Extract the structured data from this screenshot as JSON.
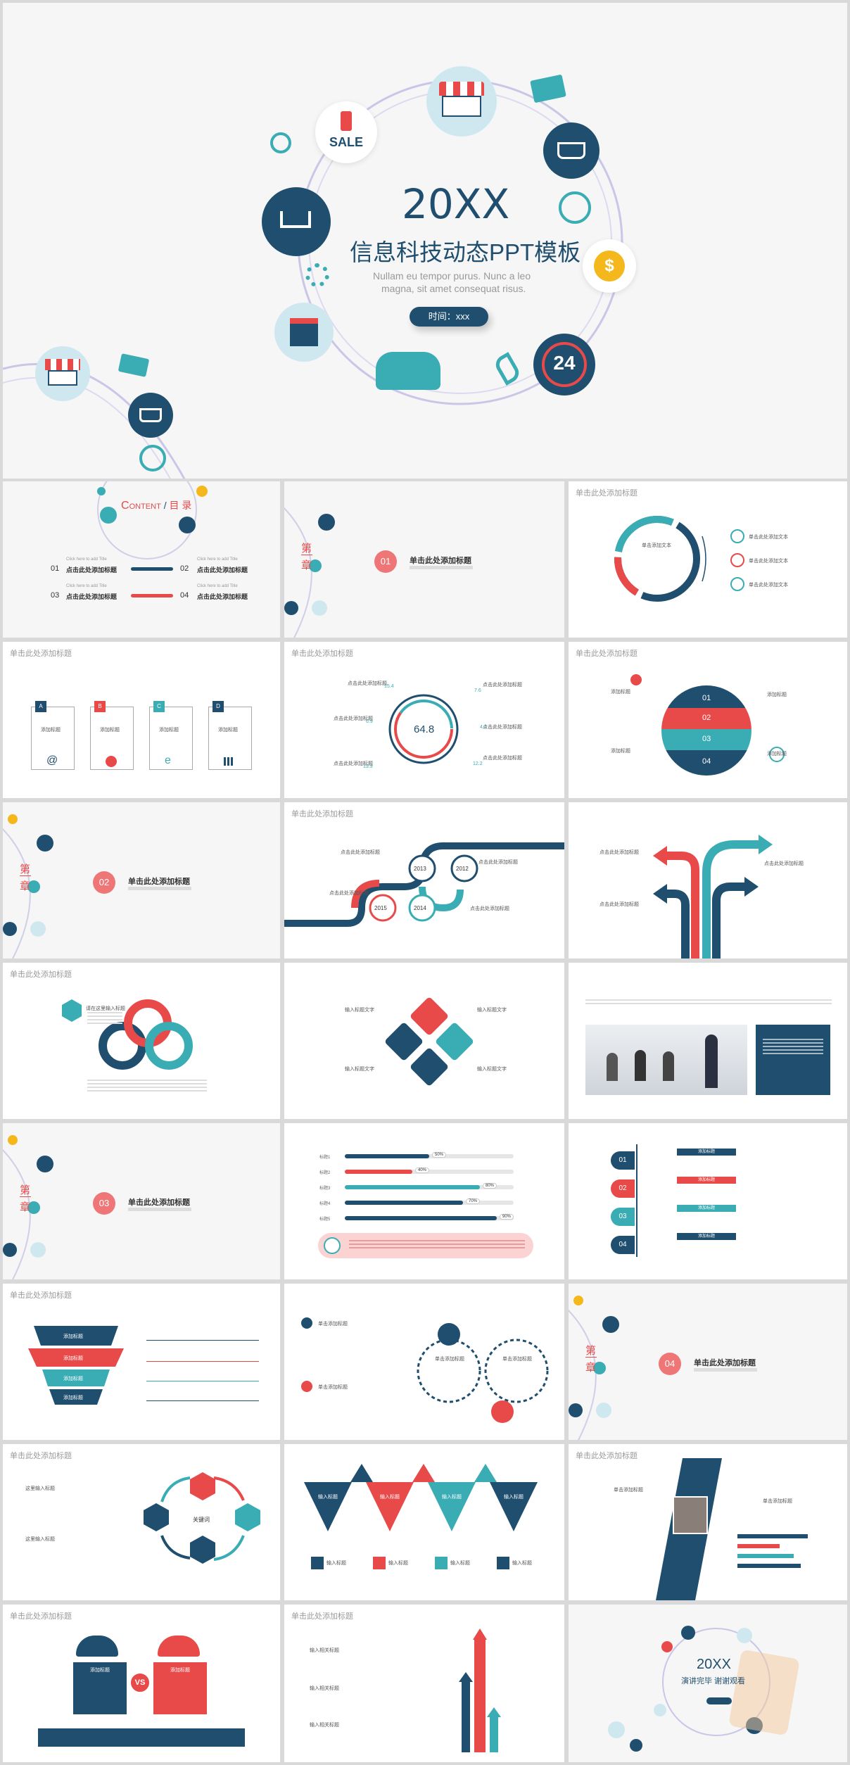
{
  "colors": {
    "navy": "#1f4e6e",
    "red": "#e84a4a",
    "teal": "#3aacb4",
    "gold": "#f5b81c"
  },
  "cover": {
    "year": "20XX",
    "title": "信息科技动态PPT模板",
    "subtitle_1": "Nullam eu tempor purus. Nunc a leo",
    "subtitle_2": "magna, sit amet consequat risus.",
    "time_label": "时间：xxx",
    "sale_label": "SALE",
    "badge_24": "24",
    "icons": [
      "sale-icon",
      "shop-stall-icon",
      "basket-icon",
      "mail-icon",
      "clock-icon",
      "coin-icon",
      "phone-icon",
      "handshake-icon",
      "gear-icon",
      "cart-icon",
      "storefront-icon",
      "tap-icon"
    ]
  },
  "header": "单击此处添加标题",
  "contents": {
    "title_a": "C",
    "title_b": "ONTENT",
    "title_sep": "/",
    "title_c": "目 录",
    "click_hint": "Click here to add Title",
    "items": [
      {
        "num": "01",
        "label": "点击此处添加标题"
      },
      {
        "num": "02",
        "label": "点击此处添加标题"
      },
      {
        "num": "03",
        "label": "点击此处添加标题"
      },
      {
        "num": "04",
        "label": "点击此处添加标题"
      }
    ]
  },
  "chapters": [
    {
      "di": "第",
      "zhang": "章",
      "num": "01",
      "title": "单击此处添加标题"
    },
    {
      "di": "第",
      "zhang": "章",
      "num": "02",
      "title": "单击此处添加标题"
    },
    {
      "di": "第",
      "zhang": "章",
      "num": "03",
      "title": "单击此处添加标题"
    },
    {
      "di": "第",
      "zhang": "章",
      "num": "04",
      "title": "单击此处添加标题"
    }
  ],
  "slide_ring": {
    "center": "单击添加文本",
    "items": [
      "单击此处添加文本",
      "单击此处添加文本",
      "单击此处添加文本"
    ]
  },
  "slide_abcd": {
    "letters": [
      "A",
      "B",
      "C",
      "D"
    ],
    "label": "添加标题"
  },
  "slide_gauge": {
    "value": "64.8",
    "item_title": "点击此处添加标题",
    "numbers": [
      "15.4",
      "6.9",
      "7.6",
      "4.1",
      "12.2",
      "13.3"
    ]
  },
  "slide_globe": {
    "labels": [
      "01",
      "02",
      "03",
      "04"
    ],
    "item_title": "添加标题"
  },
  "slide_timeline": {
    "years": [
      "2013",
      "2012",
      "2015",
      "2014"
    ],
    "item_title": "点击此处添加标题"
  },
  "slide_arrows": {
    "item_title": "点击此处添加标题"
  },
  "slide_venn": {
    "item_title": "请在这里输入标题"
  },
  "slide_diamond": {
    "item_title": "输入标题文字"
  },
  "slide_progress": {
    "bars": [
      {
        "label": "标题1",
        "percent": "50%",
        "value": 0.5
      },
      {
        "label": "标题2",
        "percent": "40%",
        "value": 0.4
      },
      {
        "label": "标题3",
        "percent": "80%",
        "value": 0.8
      },
      {
        "label": "标题4",
        "percent": "70%",
        "value": 0.7
      },
      {
        "label": "标题5",
        "percent": "90%",
        "value": 0.9
      }
    ]
  },
  "slide_list4": {
    "nums": [
      "01",
      "02",
      "03",
      "04"
    ],
    "label": "添加标题"
  },
  "slide_funnel": {
    "label": "添加标题"
  },
  "slide_dash": {
    "item_title": "单击添加标题"
  },
  "slide_hex": {
    "center": "关键词",
    "item_title": "这里输入标题"
  },
  "slide_triangles": {
    "label": "输入标题"
  },
  "slide_photo": {
    "item_title": "单击添加标题"
  },
  "slide_vs": {
    "vs": "VS",
    "label": "添加标题"
  },
  "slide_tall_arrows": {
    "item_title": "输入相关标题",
    "arrow_label": "输入相关文字标题"
  },
  "ending": {
    "year": "20XX",
    "title": "演讲完毕 谢谢观看"
  }
}
